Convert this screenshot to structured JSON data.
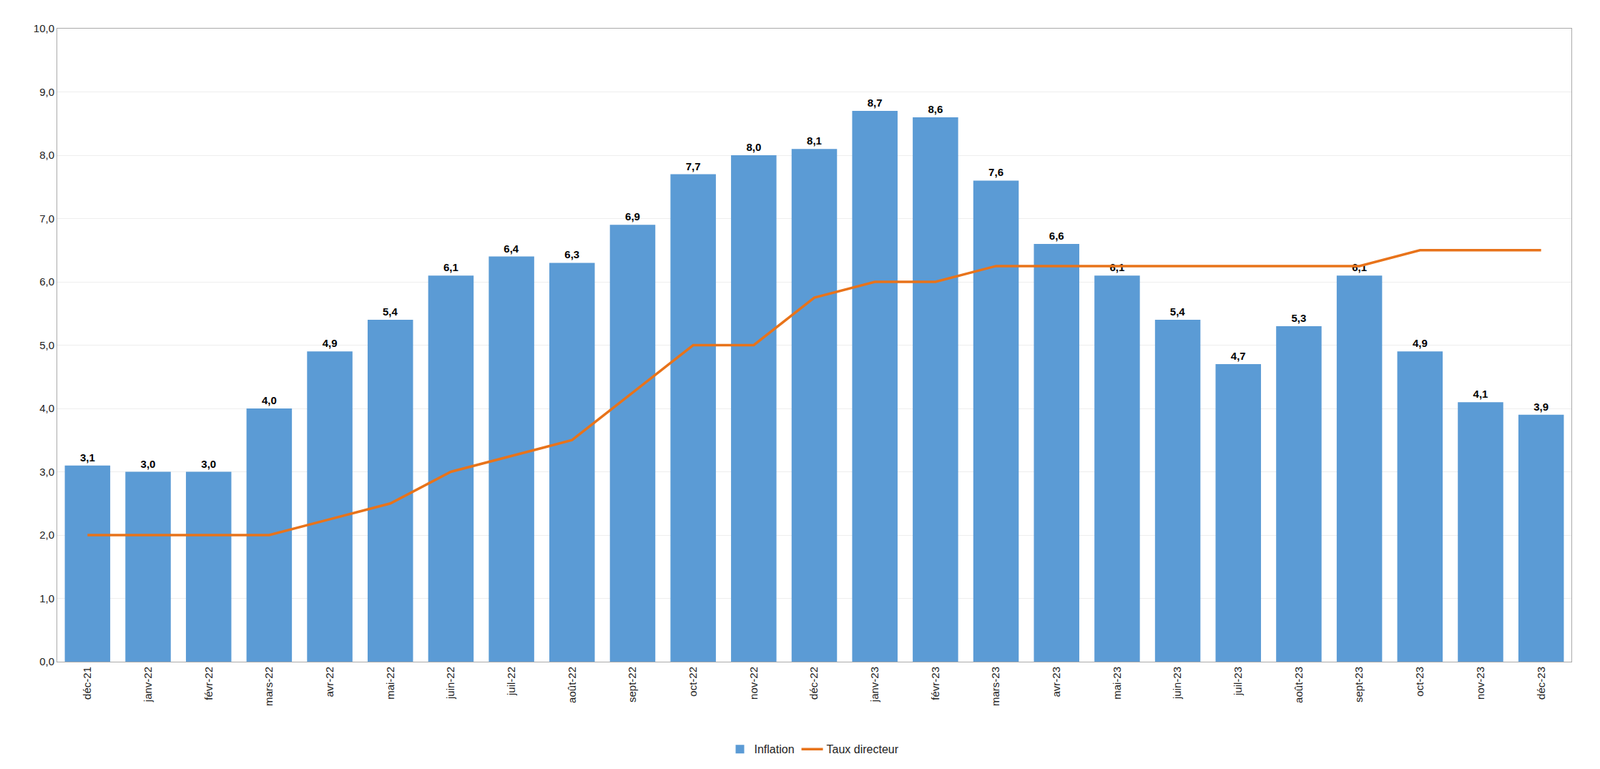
{
  "chart_data": {
    "type": "bar",
    "categories": [
      "déc-21",
      "janv-22",
      "févr-22",
      "mars-22",
      "avr-22",
      "mai-22",
      "juin-22",
      "juil-22",
      "août-22",
      "sept-22",
      "oct-22",
      "nov-22",
      "déc-22",
      "janv-23",
      "févr-23",
      "mars-23",
      "avr-23",
      "mai-23",
      "juin-23",
      "juil-23",
      "août-23",
      "sept-23",
      "oct-23",
      "nov-23",
      "déc-23"
    ],
    "series": [
      {
        "name": "Inflation",
        "type": "bar",
        "color": "#5b9bd5",
        "values": [
          3.1,
          3.0,
          3.0,
          4.0,
          4.9,
          5.4,
          6.1,
          6.4,
          6.3,
          6.9,
          7.7,
          8.0,
          8.1,
          8.7,
          8.6,
          7.6,
          6.6,
          6.1,
          5.4,
          4.7,
          5.3,
          6.1,
          4.9,
          4.1,
          3.9
        ],
        "value_labels": [
          "3,1",
          "3,0",
          "3,0",
          "4,0",
          "4,9",
          "5,4",
          "6,1",
          "6,4",
          "6,3",
          "6,9",
          "7,7",
          "8,0",
          "8,1",
          "8,7",
          "8,6",
          "7,6",
          "6,6",
          "6,1",
          "5,4",
          "4,7",
          "5,3",
          "6,1",
          "4,9",
          "4,1",
          "3,9"
        ]
      },
      {
        "name": "Taux directeur",
        "type": "line",
        "color": "#e8731a",
        "values": [
          2.0,
          2.0,
          2.0,
          2.0,
          2.25,
          2.5,
          3.0,
          3.25,
          3.5,
          4.25,
          5.0,
          5.0,
          5.75,
          6.0,
          6.0,
          6.25,
          6.25,
          6.25,
          6.25,
          6.25,
          6.25,
          6.25,
          6.5,
          6.5,
          6.5
        ]
      }
    ],
    "ylim": [
      0,
      10.0
    ],
    "yticks": [
      {
        "value": 0.0,
        "label": "0,0"
      },
      {
        "value": 1.0,
        "label": "1,0"
      },
      {
        "value": 2.0,
        "label": "2,0"
      },
      {
        "value": 3.0,
        "label": "3,0"
      },
      {
        "value": 4.0,
        "label": "4,0"
      },
      {
        "value": 5.0,
        "label": "5,0"
      },
      {
        "value": 6.0,
        "label": "6,0"
      },
      {
        "value": 7.0,
        "label": "7,0"
      },
      {
        "value": 8.0,
        "label": "8,0"
      },
      {
        "value": 9.0,
        "label": "9,0"
      },
      {
        "value": 10.0,
        "label": "10,0"
      }
    ],
    "grid": true,
    "legend": "bottom",
    "data_labels": true
  }
}
